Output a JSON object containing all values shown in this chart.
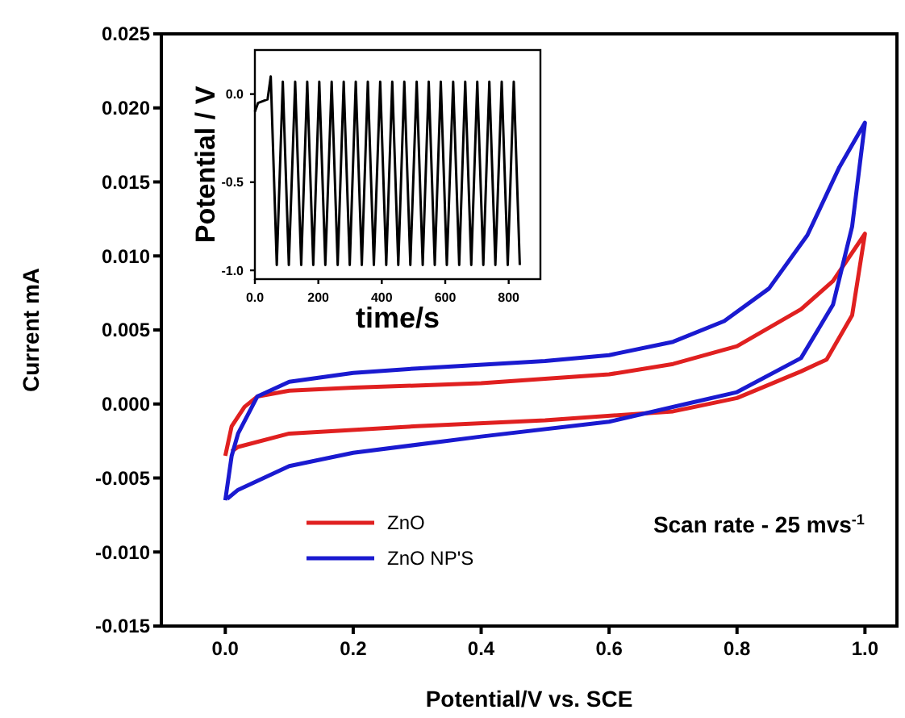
{
  "chart_data": [
    {
      "type": "line",
      "xlabel": "Potential/V vs. SCE",
      "ylabel": "Current mA",
      "xlim": [
        -0.1,
        1.05
      ],
      "ylim": [
        -0.015,
        0.025
      ],
      "xticks": [
        {
          "value": 0,
          "label": "0.0"
        },
        {
          "value": 0.2,
          "label": "0.2"
        },
        {
          "value": 0.4,
          "label": "0.4"
        },
        {
          "value": 0.6,
          "label": "0.6"
        },
        {
          "value": 0.8,
          "label": "0.8"
        },
        {
          "value": 1,
          "label": "1.0"
        }
      ],
      "yticks": [
        {
          "value": -0.015,
          "label": "-0.015"
        },
        {
          "value": -0.01,
          "label": "-0.010"
        },
        {
          "value": -0.005,
          "label": "-0.005"
        },
        {
          "value": 0,
          "label": "0.000"
        },
        {
          "value": 0.005,
          "label": "0.005"
        },
        {
          "value": 0.01,
          "label": "0.010"
        },
        {
          "value": 0.015,
          "label": "0.015"
        },
        {
          "value": 0.02,
          "label": "0.020"
        },
        {
          "value": 0.025,
          "label": "0.025"
        }
      ],
      "series": [
        {
          "name": "ZnO",
          "color": "#e02020",
          "x": [
            0,
            0.01,
            0.03,
            0.05,
            0.1,
            0.2,
            0.4,
            0.6,
            0.7,
            0.8,
            0.9,
            0.95,
            1,
            0.98,
            0.94,
            0.9,
            0.8,
            0.7,
            0.5,
            0.3,
            0.1,
            0.02,
            0.01
          ],
          "values": [
            -0.0035,
            -0.0015,
            -0.0002,
            0.0005,
            0.0009,
            0.0011,
            0.0014,
            0.002,
            0.0027,
            0.0039,
            0.0064,
            0.0083,
            0.0115,
            0.006,
            0.003,
            0.0022,
            0.0004,
            -0.0005,
            -0.0011,
            -0.0015,
            -0.002,
            -0.0029,
            -0.0032
          ]
        },
        {
          "name": "ZnO NP'S",
          "color": "#1a1ad0",
          "x": [
            0,
            0.01,
            0.02,
            0.05,
            0.1,
            0.2,
            0.3,
            0.5,
            0.6,
            0.7,
            0.78,
            0.85,
            0.91,
            0.96,
            1,
            0.98,
            0.95,
            0.9,
            0.8,
            0.72,
            0.6,
            0.4,
            0.2,
            0.1,
            0.02,
            0.003
          ],
          "values": [
            -0.0065,
            -0.0035,
            -0.002,
            0.0005,
            0.0015,
            0.0021,
            0.0024,
            0.0029,
            0.0033,
            0.0042,
            0.0056,
            0.0078,
            0.0114,
            0.016,
            0.019,
            0.012,
            0.0067,
            0.0031,
            0.0008,
            0,
            -0.0012,
            -0.0022,
            -0.0033,
            -0.0042,
            -0.0058,
            -0.0064
          ]
        }
      ],
      "marker": "none",
      "line_style": "solid",
      "grid": false,
      "legend": "bottom left",
      "annotations": [
        "Scan rate - 25 mvs$^{-1}$"
      ]
    },
    {
      "type": "line",
      "xlabel": "time/s",
      "ylabel": "Potential / V",
      "xlim": [
        0,
        900
      ],
      "ylim": [
        -1.05,
        0.25
      ],
      "xticks": [
        {
          "value": 0,
          "label": "0.0"
        },
        200,
        400,
        600,
        800
      ],
      "yticks": [
        {
          "value": -1,
          "label": "-1.0"
        },
        {
          "value": -0.5,
          "label": "-0.5"
        },
        {
          "value": 0,
          "label": "0.0"
        }
      ],
      "series": [
        {
          "color": "#000000",
          "x": [
            0,
            10,
            40,
            50,
            69,
            88,
            107,
            127,
            146,
            165,
            184,
            203,
            222,
            242,
            261,
            280,
            299,
            318,
            337,
            356,
            375,
            395,
            414,
            433,
            452,
            471,
            490,
            510,
            529,
            548,
            567,
            586,
            605,
            625,
            644,
            663,
            682,
            701,
            720,
            739,
            758,
            778,
            797,
            816,
            835
          ],
          "values": [
            -0.1,
            -0.05,
            -0.03,
            0.1,
            -0.97,
            0.07,
            -0.97,
            0.07,
            -0.97,
            0.07,
            -0.97,
            0.07,
            -0.97,
            0.07,
            -0.97,
            0.07,
            -0.97,
            0.07,
            -0.97,
            0.07,
            -0.97,
            0.07,
            -0.97,
            0.07,
            -0.97,
            0.07,
            -0.97,
            0.07,
            -0.97,
            0.07,
            -0.97,
            0.07,
            -0.97,
            0.07,
            -0.97,
            0.07,
            -0.97,
            0.07,
            -0.97,
            0.07,
            -0.97,
            0.07,
            -0.97,
            0.07,
            -0.97
          ]
        }
      ],
      "marker": "none",
      "line_style": "solid",
      "grid": false,
      "legend": false
    }
  ]
}
